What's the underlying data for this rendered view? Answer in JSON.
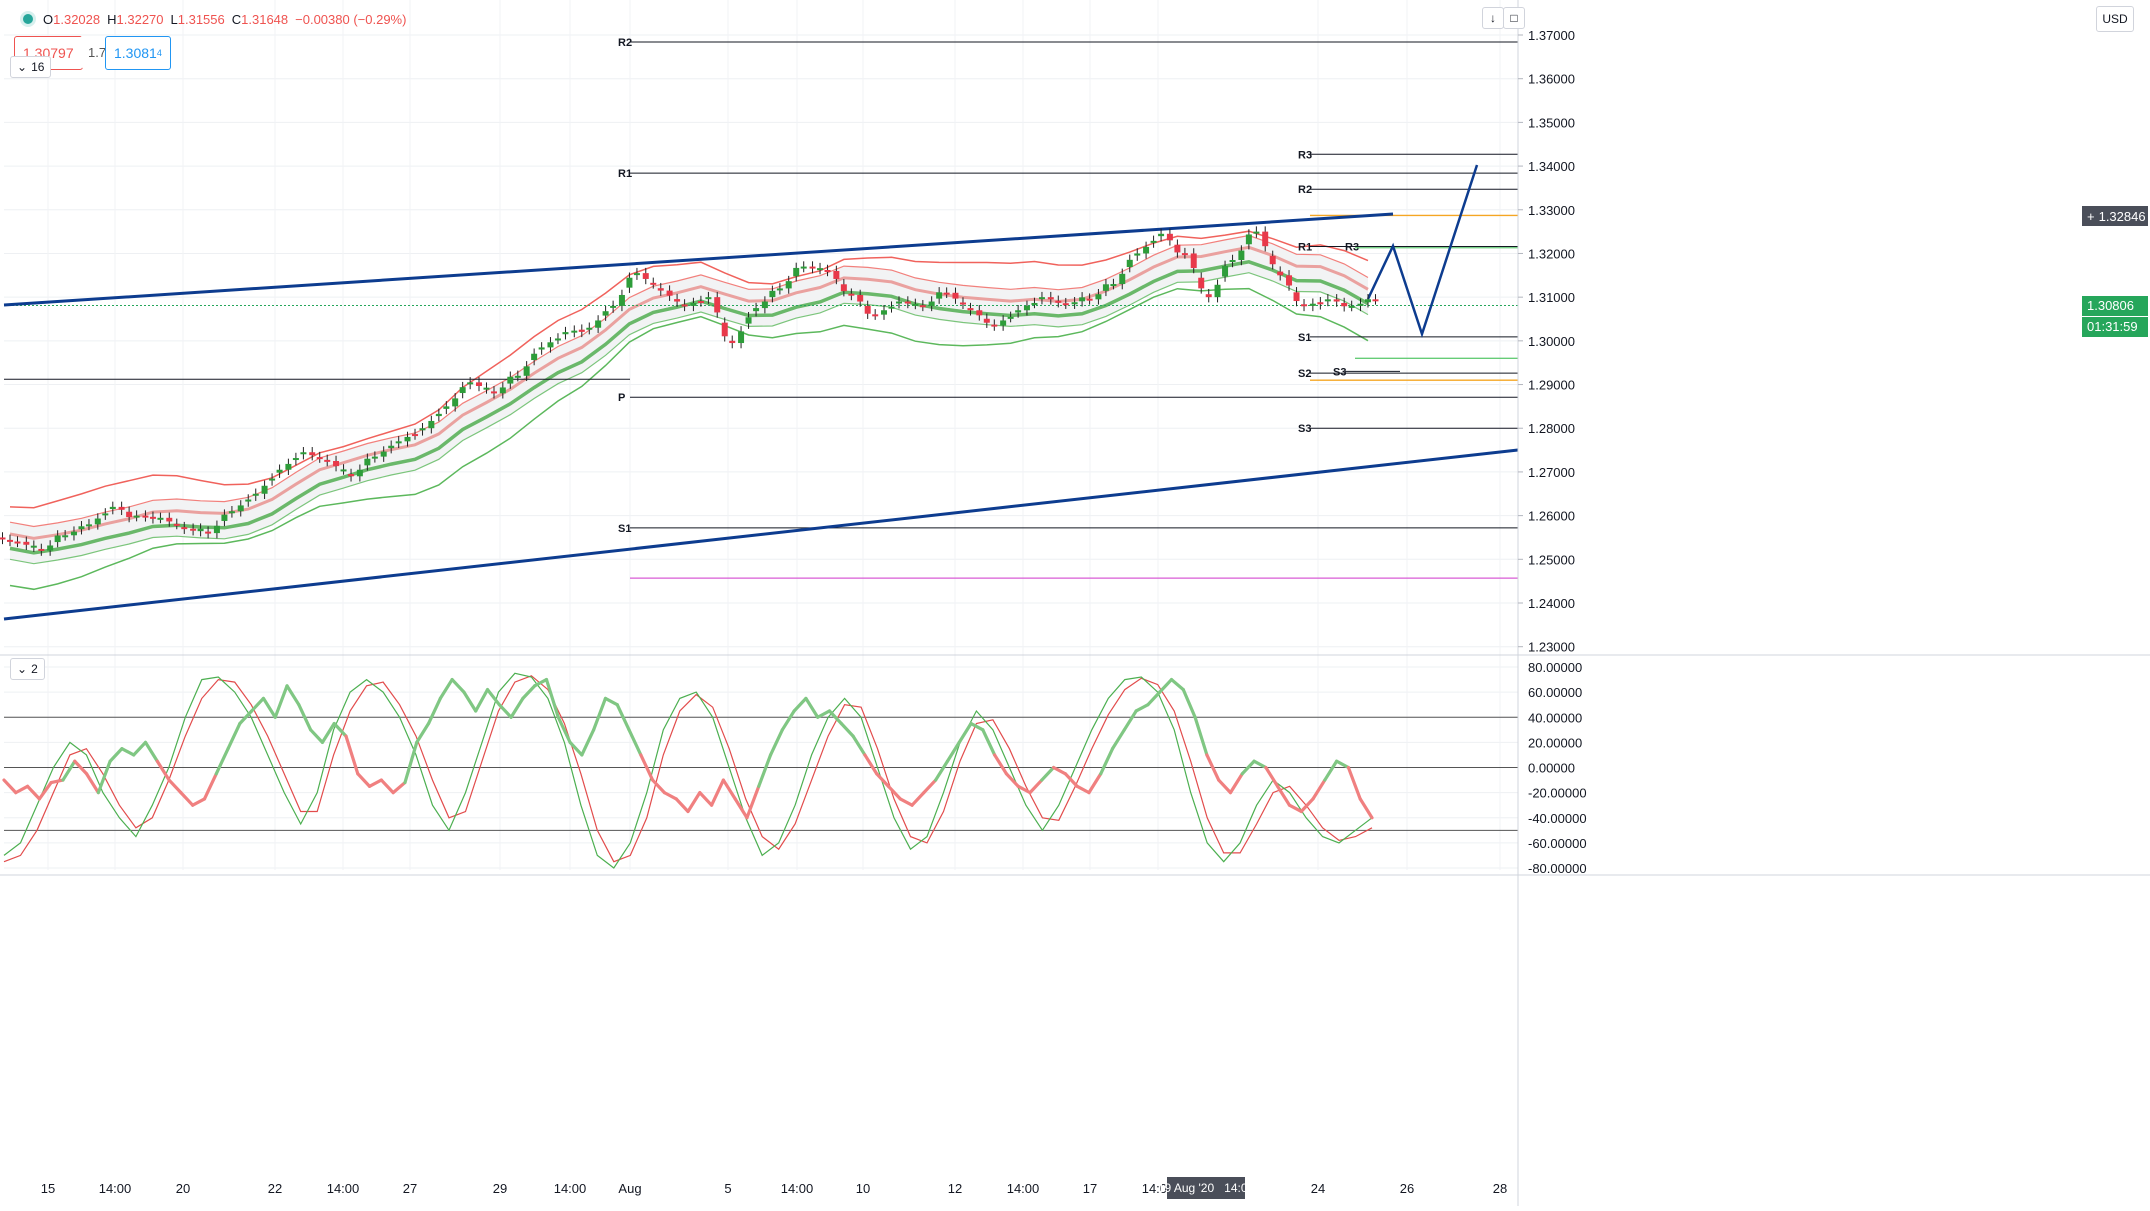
{
  "legend": {
    "open_label": "O",
    "open": "1.32028",
    "high_label": "H",
    "high": "1.32270",
    "low_label": "L",
    "low": "1.31556",
    "close_label": "C",
    "close": "1.31648",
    "change": "−0.00380 (−0.29%)"
  },
  "trade": {
    "sell": "1.30797",
    "spread": "1.7",
    "buy": "1.3081",
    "buy_sup": "4"
  },
  "collapse_main": "16",
  "collapse_osc": "2",
  "currency": "USD",
  "colors": {
    "bull": "#26a69a",
    "candle_up": "#2e9d3a",
    "candle_down": "#e8394a",
    "trend": "#0d3c8f",
    "band_red": "#f0625c",
    "band_green": "#5cb85c",
    "pivot_line": "#131722",
    "orange": "#f5a623",
    "magenta": "#d85cd6",
    "last_price": "#26a65b",
    "crosshair_price": "#4a4e59"
  },
  "tags": {
    "crosshair_price": "1.32846",
    "last_price": "1.30806",
    "countdown": "01:31:59",
    "crosshair_time": "19 Aug '20   14:00"
  },
  "chart_data": {
    "type": "candlestick",
    "y_axis_main": {
      "ylim": [
        1.2323,
        1.3745
      ],
      "ticks": [
        "1.37000",
        "1.36000",
        "1.35000",
        "1.34000",
        "1.33000",
        "1.32000",
        "1.31000",
        "1.30000",
        "1.29000",
        "1.28000",
        "1.27000",
        "1.26000",
        "1.25000",
        "1.24000",
        "1.23000"
      ]
    },
    "x_axis": {
      "labels": [
        "15",
        "14:00",
        "20",
        "22",
        "14:00",
        "27",
        "29",
        "14:00",
        "Aug",
        "5",
        "14:00",
        "10",
        "12",
        "14:00",
        "17",
        "14:00",
        "24",
        "26",
        "28"
      ]
    },
    "pivots": [
      {
        "label": "R2",
        "value": 1.3684
      },
      {
        "label": "R1",
        "value": 1.3384
      },
      {
        "label": "P",
        "value": 1.2871
      },
      {
        "label": "S1",
        "value": 1.2572
      },
      {
        "label": "R3",
        "value": 1.3427
      },
      {
        "label": "R2",
        "value": 1.3347
      },
      {
        "label": "R1",
        "value": 1.3216
      },
      {
        "label": "S1",
        "value": 1.3009
      },
      {
        "label": "S2",
        "value": 1.2926
      },
      {
        "label": "S3",
        "value": 1.28
      },
      {
        "label": "R3",
        "value": 1.3216
      },
      {
        "label": "S3",
        "value": 1.293
      }
    ],
    "candles_close": [
      1.254,
      1.252,
      1.2555,
      1.258,
      1.262,
      1.26,
      1.2595,
      1.257,
      1.256,
      1.261,
      1.265,
      1.2705,
      1.2745,
      1.2725,
      1.269,
      1.2735,
      1.277,
      1.28,
      1.285,
      1.2905,
      1.288,
      1.292,
      1.2985,
      1.302,
      1.303,
      1.308,
      1.3155,
      1.3115,
      1.308,
      1.31,
      1.2995,
      1.3075,
      1.312,
      1.317,
      1.316,
      1.3105,
      1.306,
      1.309,
      1.308,
      1.311,
      1.307,
      1.3035,
      1.307,
      1.31,
      1.3085,
      1.3095,
      1.313,
      1.32,
      1.3245,
      1.32,
      1.31,
      1.3185,
      1.325,
      1.315,
      1.308,
      1.3095,
      1.308,
      1.3095
    ],
    "oscillator": {
      "ylim": [
        -88,
        88
      ],
      "ticks": [
        "80.00000",
        "60.00000",
        "40.00000",
        "20.00000",
        "0.00000",
        "-20.00000",
        "-40.00000",
        "-60.00000",
        "-80.00000"
      ],
      "levels": [
        40,
        0,
        -50
      ],
      "cci": [
        -10,
        -20,
        -15,
        -25,
        -12,
        -10,
        5,
        -5,
        -20,
        5,
        15,
        10,
        20,
        5,
        -10,
        -20,
        -30,
        -25,
        -5,
        15,
        35,
        45,
        55,
        40,
        65,
        50,
        30,
        20,
        35,
        25,
        -5,
        -15,
        -10,
        -20,
        -12,
        20,
        35,
        55,
        70,
        60,
        45,
        62,
        50,
        40,
        55,
        65,
        70,
        40,
        20,
        10,
        30,
        55,
        50,
        30,
        10,
        -10,
        -20,
        -25,
        -35,
        -20,
        -30,
        -10,
        -25,
        -40,
        -15,
        10,
        30,
        45,
        55,
        40,
        45,
        35,
        25,
        10,
        -5,
        -15,
        -25,
        -30,
        -20,
        -10,
        5,
        20,
        35,
        30,
        10,
        -5,
        -15,
        -20,
        -10,
        0,
        -5,
        -15,
        -20,
        -5,
        15,
        30,
        45,
        50,
        60,
        70,
        62,
        40,
        10,
        -10,
        -20,
        -5,
        5,
        0,
        -15,
        -30,
        -35,
        -25,
        -10,
        5,
        0,
        -25,
        -40
      ],
      "fast": [
        -70,
        -60,
        -30,
        0,
        20,
        10,
        -20,
        -40,
        -55,
        -30,
        0,
        40,
        70,
        72,
        60,
        40,
        10,
        -20,
        -45,
        -20,
        30,
        60,
        70,
        60,
        40,
        10,
        -30,
        -50,
        -20,
        20,
        60,
        75,
        72,
        55,
        20,
        -30,
        -70,
        -80,
        -60,
        -20,
        30,
        55,
        60,
        40,
        0,
        -40,
        -70,
        -60,
        -30,
        10,
        40,
        55,
        40,
        0,
        -40,
        -65,
        -55,
        -20,
        20,
        45,
        30,
        0,
        -30,
        -50,
        -30,
        0,
        30,
        55,
        70,
        72,
        60,
        30,
        -20,
        -60,
        -75,
        -60,
        -30,
        -10,
        -20,
        -40,
        -55,
        -60,
        -50,
        -40
      ],
      "slow": [
        -75,
        -70,
        -50,
        -20,
        10,
        15,
        -5,
        -30,
        -48,
        -40,
        -10,
        25,
        55,
        70,
        68,
        50,
        25,
        -5,
        -35,
        -35,
        10,
        45,
        65,
        68,
        50,
        25,
        -10,
        -40,
        -35,
        5,
        45,
        68,
        73,
        62,
        35,
        -5,
        -50,
        -75,
        -70,
        -40,
        10,
        45,
        58,
        48,
        15,
        -25,
        -55,
        -65,
        -45,
        -10,
        25,
        50,
        48,
        15,
        -25,
        -55,
        -60,
        -35,
        5,
        35,
        38,
        15,
        -15,
        -40,
        -42,
        -15,
        15,
        42,
        62,
        71,
        66,
        45,
        5,
        -40,
        -68,
        -68,
        -45,
        -20,
        -15,
        -30,
        -48,
        -58,
        -55,
        -48
      ]
    }
  }
}
